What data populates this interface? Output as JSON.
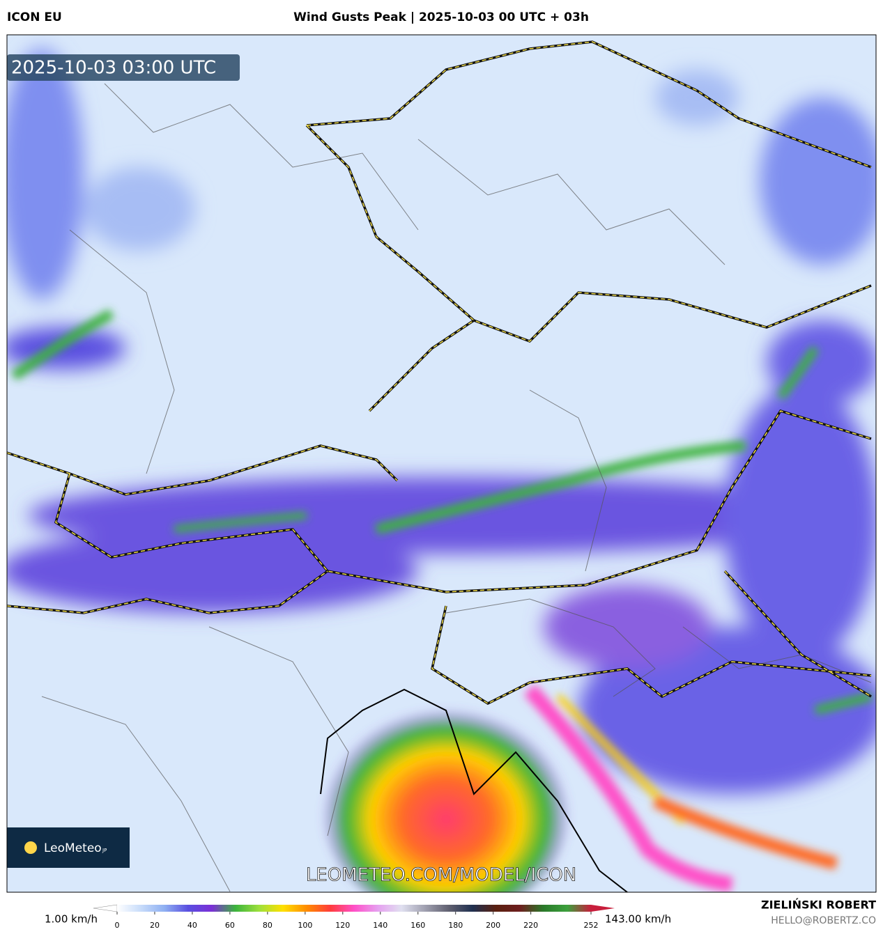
{
  "header": {
    "model": "ICON EU",
    "title": "Wind Gusts Peak | 2025-10-03 00 UTC + 03h"
  },
  "map": {
    "timestamp": "2025-10-03 03:00 UTC",
    "logo": "LeoMeteo",
    "logo_suffix": "JP",
    "watermark": "LEOMETEO.COM/MODEL/ICON"
  },
  "colorbar": {
    "min_label": "1.00 km/h",
    "max_label": "143.00 km/h",
    "range": [
      0,
      252
    ],
    "ticks": [
      0,
      20,
      40,
      60,
      80,
      100,
      120,
      140,
      160,
      180,
      200,
      220,
      252
    ],
    "colors": [
      "#ffffff",
      "#c8dcfa",
      "#8fb0f2",
      "#5a4fe0",
      "#7b2fd6",
      "#3cb43c",
      "#9ee03c",
      "#ffe000",
      "#ff8c00",
      "#ff3c3c",
      "#ff50c8",
      "#e6a0f0",
      "#e0e0f0",
      "#a0a0b0",
      "#606070",
      "#203050",
      "#5a2010",
      "#6e1e1e",
      "#2a7a2a",
      "#3ca03c",
      "#c81e3c"
    ]
  },
  "credits": {
    "name": "ZIELIŃSKI ROBERT",
    "email": "HELLO@ROBERTZ.CO"
  }
}
